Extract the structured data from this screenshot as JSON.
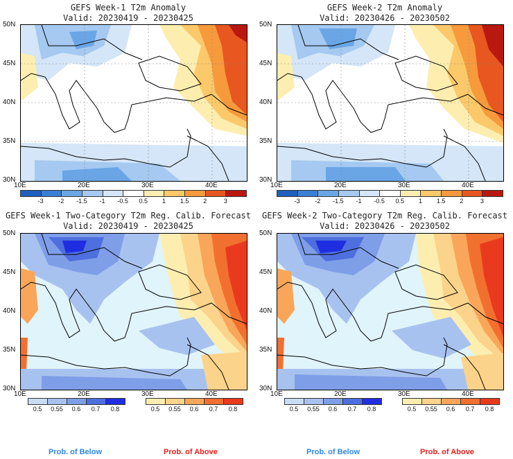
{
  "panels": [
    {
      "title1": "GEFS Week-1 T2m Anomaly",
      "title2": "Valid: 20230419 - 20230425",
      "kind": "anomaly"
    },
    {
      "title1": "GEFS Week-2 T2m Anomaly",
      "title2": "Valid: 20230426 - 20230502",
      "kind": "anomaly"
    },
    {
      "title1": "GEFS Week-1 Two-Category T2m Reg. Calib. Forecast",
      "title2": "Valid: 20230419 - 20230425",
      "kind": "prob"
    },
    {
      "title1": "GEFS Week-2 Two-Category T2m Reg. Calib. Forecast",
      "title2": "Valid: 20230426 - 20230502",
      "kind": "prob"
    }
  ],
  "lat_labels": [
    "50N",
    "45N",
    "40N",
    "35N",
    "30N"
  ],
  "lon_labels": [
    "10E",
    "20E",
    "30E",
    "40E"
  ],
  "anomaly_scale": {
    "ticks": [
      "-3",
      "-2",
      "-1.5",
      "-1",
      "-0.5",
      "0.5",
      "1",
      "1.5",
      "2",
      "3"
    ],
    "colors": [
      "#1f5fbf",
      "#3a7fd6",
      "#6aa6e6",
      "#a5c9f0",
      "#d4e6f7",
      "#ffffff",
      "#fdeeb0",
      "#fcc96a",
      "#f79a3c",
      "#e8571f",
      "#b8180f"
    ]
  },
  "prob_scale": {
    "below_ticks": [
      "0.5",
      "0.55",
      "0.6",
      "0.7",
      "0.8"
    ],
    "above_ticks": [
      "0.5",
      "0.55",
      "0.6",
      "0.7",
      "0.8"
    ],
    "below_colors": [
      "#c9dcf5",
      "#a8c2f0",
      "#7f9ee8",
      "#4f6fdf",
      "#1f2ee0"
    ],
    "above_colors": [
      "#fdeeb0",
      "#fcd38a",
      "#f9a65a",
      "#f2702f",
      "#ea3a1e"
    ]
  },
  "legend": {
    "below": "Prob. of Below",
    "above": "Prob. of Above",
    "below_color": "#2f86e8",
    "above_color": "#e8201a"
  }
}
